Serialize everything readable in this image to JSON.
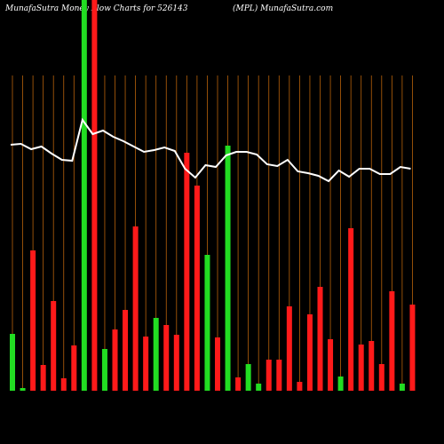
{
  "chart_data": {
    "type": "bar-line",
    "title": "MunafaSutra  Money Flow  Charts for 526143",
    "subtitle": "(MPL) MunafaSutra.com",
    "ylim": [
      0,
      440
    ],
    "background": "#000000",
    "grid_color": "#b8620a",
    "series": [
      {
        "name": "volume",
        "type": "bar",
        "values": [
          64,
          3,
          158,
          29,
          101,
          14,
          51,
          440,
          440,
          47,
          69,
          91,
          185,
          61,
          82,
          74,
          63,
          268,
          231,
          153,
          60,
          276,
          15,
          30,
          8,
          35,
          35,
          95,
          10,
          86,
          117,
          58,
          16,
          183,
          52,
          56,
          30,
          112,
          8,
          97
        ],
        "colors": [
          "#22dd22",
          "#22dd22",
          "#ff1a1a",
          "#ff1a1a",
          "#ff1a1a",
          "#ff1a1a",
          "#ff1a1a",
          "#22dd22",
          "#ff1a1a",
          "#22dd22",
          "#ff1a1a",
          "#ff1a1a",
          "#ff1a1a",
          "#ff1a1a",
          "#22dd22",
          "#ff1a1a",
          "#ff1a1a",
          "#ff1a1a",
          "#ff1a1a",
          "#22dd22",
          "#ff1a1a",
          "#22dd22",
          "#ff1a1a",
          "#22dd22",
          "#22dd22",
          "#ff1a1a",
          "#ff1a1a",
          "#ff1a1a",
          "#ff1a1a",
          "#ff1a1a",
          "#ff1a1a",
          "#ff1a1a",
          "#22dd22",
          "#ff1a1a",
          "#ff1a1a",
          "#ff1a1a",
          "#ff1a1a",
          "#ff1a1a",
          "#22dd22",
          "#ff1a1a"
        ]
      },
      {
        "name": "price",
        "type": "line",
        "color": "#ffffff",
        "values": [
          277,
          278,
          272,
          275,
          267,
          260,
          259,
          305,
          289,
          293,
          286,
          281,
          275,
          269,
          271,
          274,
          270,
          250,
          240,
          254,
          252,
          265,
          269,
          269,
          266,
          255,
          253,
          260,
          247,
          245,
          242,
          236,
          248,
          241,
          250,
          250,
          244,
          244,
          252,
          250
        ]
      }
    ]
  }
}
